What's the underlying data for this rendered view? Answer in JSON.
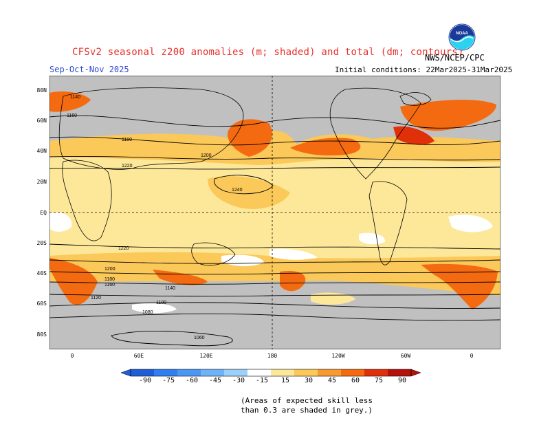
{
  "header": {
    "title": "CFSv2 seasonal z200 anomalies (m; shaded) and total (dm; contours)",
    "season": "Sep-Oct-Nov 2025",
    "initial_conditions": "Initial conditions: 22Mar2025-31Mar2025",
    "agency": "NWS/NCEP/CPC",
    "logo_text": "NOAA"
  },
  "map": {
    "latitude_labels": [
      "80N",
      "60N",
      "40N",
      "20N",
      "EQ",
      "20S",
      "40S",
      "60S",
      "80S"
    ],
    "longitude_labels": [
      "0",
      "60E",
      "120E",
      "180",
      "120W",
      "60W",
      "0"
    ],
    "contour_labels": [
      "1140",
      "1160",
      "1180",
      "1200",
      "1220",
      "1240",
      "1220",
      "1200",
      "1180",
      "1160",
      "1140",
      "1120",
      "1100",
      "1080",
      "1060"
    ]
  },
  "colorbar": {
    "values": [
      "-90",
      "-75",
      "-60",
      "-45",
      "-30",
      "-15",
      "15",
      "30",
      "45",
      "60",
      "75",
      "90"
    ],
    "colors": [
      "#1e5fd8",
      "#2f7ff0",
      "#4a97f5",
      "#6eb3f7",
      "#9ad0fa",
      "#c4e8fc",
      "#ffffff",
      "#fde89a",
      "#fbc85a",
      "#f99a2e",
      "#f46a10",
      "#e0300a",
      "#b4120a"
    ]
  },
  "note": {
    "line1": "(Areas of expected skill less",
    "line2": "than 0.3 are shaded in grey.)"
  }
}
